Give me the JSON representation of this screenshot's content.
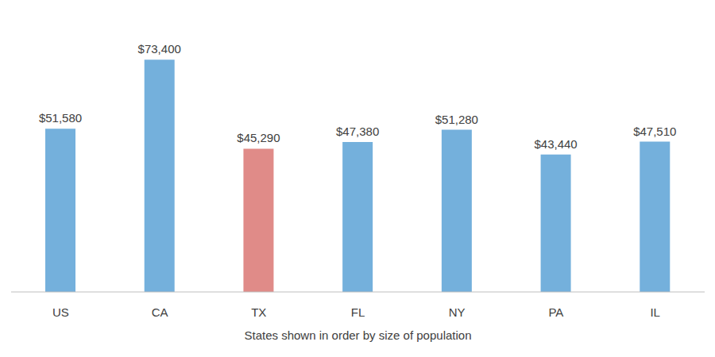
{
  "chart_data": {
    "type": "bar",
    "xlabel": "States shown in order by size of population",
    "categories": [
      "US",
      "CA",
      "TX",
      "FL",
      "NY",
      "PA",
      "IL"
    ],
    "values": [
      51580,
      73400,
      45290,
      47380,
      51280,
      43440,
      47510
    ],
    "value_labels": [
      "$51,580",
      "$73,400",
      "$45,290",
      "$47,380",
      "$51,280",
      "$43,440",
      "$47,510"
    ],
    "data_labels": true,
    "colors": [
      "#74b0dc",
      "#74b0dc",
      "#e08b88",
      "#74b0dc",
      "#74b0dc",
      "#74b0dc",
      "#74b0dc"
    ],
    "ylim": [
      0,
      80000
    ],
    "grid": false,
    "tick_labels": "x"
  }
}
